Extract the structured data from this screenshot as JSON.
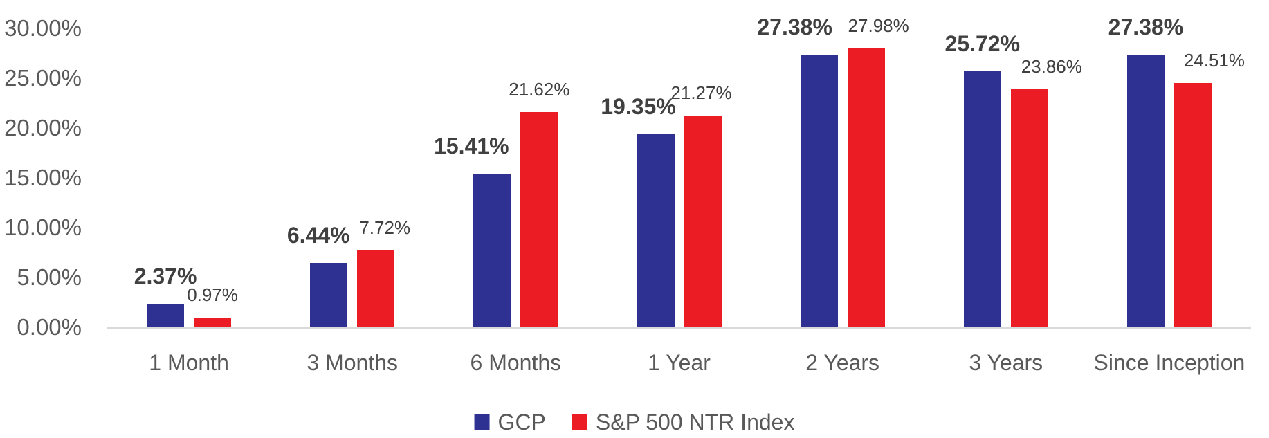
{
  "chart_data": {
    "type": "bar",
    "title": "",
    "xlabel": "",
    "ylabel": "",
    "categories": [
      "1 Month",
      "3 Months",
      "6 Months",
      "1 Year",
      "2 Years",
      "3 Years",
      "Since Inception"
    ],
    "series": [
      {
        "name": "GCP",
        "color": "#2E3192",
        "values": [
          2.37,
          6.44,
          15.41,
          19.35,
          27.38,
          25.72,
          27.38
        ],
        "labels": [
          "2.37%",
          "6.44%",
          "15.41%",
          "19.35%",
          "27.38%",
          "25.72%",
          "27.38%"
        ],
        "label_weight": "bold"
      },
      {
        "name": "S&P 500 NTR Index",
        "color": "#EC1C24",
        "values": [
          0.97,
          7.72,
          21.62,
          21.27,
          27.98,
          23.86,
          24.51
        ],
        "labels": [
          "0.97%",
          "7.72%",
          "21.62%",
          "21.27%",
          "27.98%",
          "23.86%",
          "24.51%"
        ],
        "label_weight": "regular"
      }
    ],
    "y_ticks": [
      {
        "label": "30.00%",
        "value": 30
      },
      {
        "label": "25.00%",
        "value": 25
      },
      {
        "label": "20.00%",
        "value": 20
      },
      {
        "label": "15.00%",
        "value": 15
      },
      {
        "label": "10.00%",
        "value": 10
      },
      {
        "label": "5.00%",
        "value": 5
      },
      {
        "label": "0.00%",
        "value": 0
      }
    ],
    "ylim": [
      0,
      30
    ],
    "grid": false,
    "legend_position": "bottom"
  },
  "colors": {
    "axis_text": "#595959",
    "data_label": "#404040",
    "baseline": "#D9D9D9",
    "background": "#FFFFFF"
  }
}
